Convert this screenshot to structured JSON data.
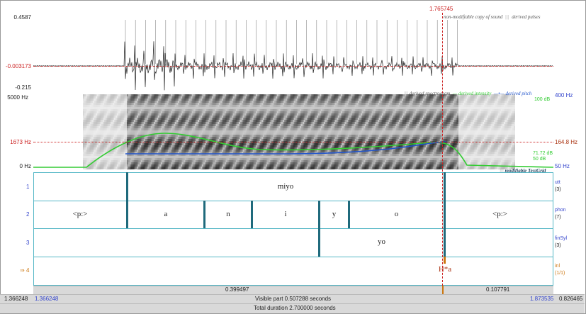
{
  "cursor": {
    "time": "1.765745"
  },
  "waveform": {
    "ymax": "0.4587",
    "ymid": "-0.003173",
    "ymin": "-0.215",
    "legend_copy": "non-modifiable copy of sound",
    "legend_pulses": "derived pulses"
  },
  "spectrogram": {
    "fmax": "5000 Hz",
    "fcursor": "1673 Hz",
    "fmin": "0 Hz",
    "legend_spec": "derived spectrogram",
    "legend_intensity": "derived intensity",
    "legend_pitch": "derived pitch",
    "right_top": "400 Hz",
    "right_db_top": "100 dB",
    "right_mid": "164.8 Hz",
    "right_db_a": "71.72 dB",
    "right_db_b": "50 dB",
    "right_bottom": "50 Hz",
    "textgrid_label": "modifiable TextGrid"
  },
  "tiers": [
    {
      "num": "1",
      "name": "utt",
      "count": "(3)",
      "segments": [
        "miyo"
      ]
    },
    {
      "num": "2",
      "name": "phon",
      "count": "(7)",
      "segments": [
        "<p:>",
        "a",
        "n",
        "i",
        "y",
        "o",
        "<p:>"
      ]
    },
    {
      "num": "3",
      "name": "finSyl",
      "count": "(3)",
      "segments": [
        "yo"
      ]
    },
    {
      "num": "4",
      "prefix": "⇒",
      "name": "inl",
      "count": "(1/1)",
      "segments": [
        "H*a"
      ]
    }
  ],
  "footer": {
    "sel_left": "0.399497",
    "sel_right": "0.107791",
    "left_start": "1.366248",
    "left_visible_start": "1.366248",
    "visible": "Visible part 0.507288 seconds",
    "right_visible_end": "1.873535",
    "right_end": "0.826465",
    "total": "Total duration 2.700000 seconds"
  },
  "colors": {
    "cursor": "#cc2222",
    "intensity": "#33cc33",
    "pitch": "#2255cc",
    "tier_line": "#55b7c6",
    "boundary": "#1f6a7c",
    "blue_text": "#3344cc",
    "maroon": "#aa3311"
  }
}
